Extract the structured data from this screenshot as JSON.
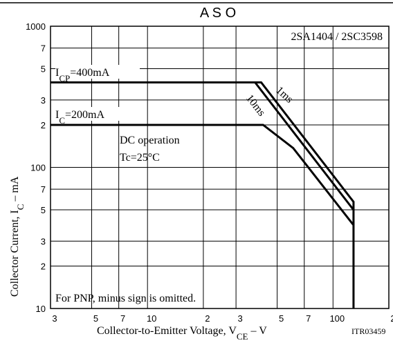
{
  "chart_data": {
    "type": "line",
    "title": "A S O",
    "device": "2SA1404 / 2SC3598",
    "icp_label": {
      "text": "I",
      "sub": "CP",
      "rest": "=400mA"
    },
    "ic_label": {
      "text": "I",
      "sub": "C",
      "rest": "=200mA"
    },
    "condition": "Tc=25°C",
    "note": "For PNP, minus sign is omitted.",
    "code": "ITR03459",
    "xlabel": {
      "text": "Collector-to-Emitter Voltage, V",
      "sub": "CE",
      "rest": " –  V"
    },
    "ylabel": {
      "text": "Collector Current, I",
      "sub": "C",
      "rest": "  –  mA"
    },
    "xscale": "log",
    "yscale": "log",
    "grid": true,
    "color": "#000000",
    "xlim": [
      3,
      200
    ],
    "ylim": [
      10,
      1000
    ],
    "xticks": [
      3,
      5,
      7,
      10,
      {
        "value": 20,
        "label": "2"
      },
      {
        "value": 30,
        "label": "3"
      },
      {
        "value": 50,
        "label": "5"
      },
      {
        "value": 70,
        "label": "7"
      },
      100,
      {
        "value": 200,
        "label": "2"
      }
    ],
    "yticks": [
      10,
      {
        "value": 20,
        "label": "2"
      },
      {
        "value": 30,
        "label": "3"
      },
      {
        "value": 50,
        "label": "5"
      },
      {
        "value": 70,
        "label": "7"
      },
      100,
      {
        "value": 200,
        "label": "2"
      },
      {
        "value": 300,
        "label": "3"
      },
      {
        "value": 500,
        "label": "5"
      },
      {
        "value": 700,
        "label": "7"
      },
      1000
    ],
    "series": [
      {
        "name": "1ms",
        "x": [
          3,
          41,
          129,
          129
        ],
        "values": [
          400,
          400,
          57,
          10
        ]
      },
      {
        "name": "10ms",
        "x": [
          38,
          129
        ],
        "values": [
          400,
          50
        ]
      },
      {
        "name": "DC operation",
        "x": [
          3,
          42,
          61,
          129
        ],
        "values": [
          200,
          200,
          137,
          39
        ]
      }
    ]
  }
}
